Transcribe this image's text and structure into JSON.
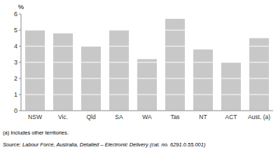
{
  "chart_data": {
    "type": "bar",
    "categories": [
      "NSW",
      "Vic.",
      "Qld",
      "SA",
      "WA",
      "Tas",
      "NT",
      "ACT",
      "Aust. (a)"
    ],
    "values": [
      5.0,
      4.8,
      4.0,
      5.0,
      3.2,
      5.7,
      3.8,
      3.0,
      4.5
    ],
    "color": "#c8c8c8",
    "ylabel": "%",
    "ylim": [
      0,
      6
    ],
    "yticks": [
      0,
      1,
      2,
      3,
      4,
      5,
      6
    ],
    "grid": true,
    "annotations": [
      "(a) Includes other territories.",
      "Source: Labour Force, Australia, Detailed – Electronic Delivery (cat. no. 6291.0.55.001)"
    ]
  }
}
